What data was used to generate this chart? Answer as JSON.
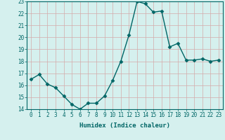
{
  "x": [
    0,
    1,
    2,
    3,
    4,
    5,
    6,
    7,
    8,
    9,
    10,
    11,
    12,
    13,
    14,
    15,
    16,
    17,
    18,
    19,
    20,
    21,
    22,
    23
  ],
  "y": [
    16.5,
    16.9,
    16.1,
    15.8,
    15.1,
    14.4,
    14.0,
    14.5,
    14.5,
    15.1,
    16.4,
    18.0,
    20.2,
    23.0,
    22.8,
    22.1,
    22.2,
    19.2,
    19.5,
    18.1,
    18.1,
    18.2,
    18.0,
    18.1
  ],
  "xlabel": "Humidex (Indice chaleur)",
  "ylim": [
    14,
    23
  ],
  "xlim": [
    -0.5,
    23.5
  ],
  "line_color": "#006666",
  "bg_color": "#d5f0ee",
  "grid_color": "#d4aaaa",
  "tick_color": "#006666",
  "yticks": [
    14,
    15,
    16,
    17,
    18,
    19,
    20,
    21,
    22,
    23
  ],
  "xticks": [
    0,
    1,
    2,
    3,
    4,
    5,
    6,
    7,
    8,
    9,
    10,
    11,
    12,
    13,
    14,
    15,
    16,
    17,
    18,
    19,
    20,
    21,
    22,
    23
  ],
  "tick_fontsize": 5.5,
  "xlabel_fontsize": 6.5,
  "marker_size": 2.5,
  "linewidth": 1.0
}
